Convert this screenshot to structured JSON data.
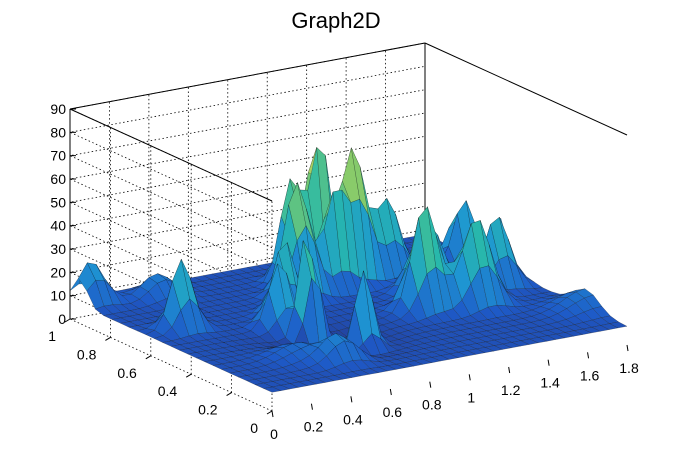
{
  "chart_data": {
    "type": "surface3d",
    "title": "Graph2D",
    "x_range": [
      0,
      1.8
    ],
    "y_range": [
      0,
      1
    ],
    "z_range": [
      0,
      90
    ],
    "x_ticks": [
      "0",
      "0.2",
      "0.4",
      "0.6",
      "0.8",
      "1",
      "1.2",
      "1.4",
      "1.6",
      "1.8"
    ],
    "y_ticks": [
      "0",
      "0.2",
      "0.4",
      "0.6",
      "0.8",
      "1"
    ],
    "z_ticks": [
      "0",
      "10",
      "20",
      "30",
      "40",
      "50",
      "60",
      "70",
      "80",
      "90"
    ],
    "grid": true,
    "colormap": "viridis",
    "peaks": [
      {
        "x": 0.06,
        "y": 0.95,
        "z": 18,
        "w": 0.035
      },
      {
        "x": 0.18,
        "y": 0.62,
        "z": 30,
        "w": 0.03
      },
      {
        "x": 0.35,
        "y": 0.9,
        "z": 10,
        "w": 0.04
      },
      {
        "x": 0.55,
        "y": 0.5,
        "z": 28,
        "w": 0.03
      },
      {
        "x": 0.6,
        "y": 0.4,
        "z": 60,
        "w": 0.022
      },
      {
        "x": 0.66,
        "y": 0.58,
        "z": 32,
        "w": 0.03
      },
      {
        "x": 0.72,
        "y": 0.25,
        "z": 35,
        "w": 0.025
      },
      {
        "x": 0.5,
        "y": 0.15,
        "z": 12,
        "w": 0.04
      },
      {
        "x": 0.85,
        "y": 0.7,
        "z": 50,
        "w": 0.035
      },
      {
        "x": 0.95,
        "y": 0.82,
        "z": 48,
        "w": 0.03
      },
      {
        "x": 1.05,
        "y": 0.72,
        "z": 45,
        "w": 0.03
      },
      {
        "x": 1.1,
        "y": 0.85,
        "z": 68,
        "w": 0.028
      },
      {
        "x": 1.18,
        "y": 0.74,
        "z": 58,
        "w": 0.03
      },
      {
        "x": 1.35,
        "y": 0.75,
        "z": 32,
        "w": 0.035
      },
      {
        "x": 1.2,
        "y": 0.42,
        "z": 45,
        "w": 0.035
      },
      {
        "x": 1.35,
        "y": 0.55,
        "z": 30,
        "w": 0.04
      },
      {
        "x": 1.42,
        "y": 0.38,
        "z": 38,
        "w": 0.04
      },
      {
        "x": 1.65,
        "y": 0.5,
        "z": 30,
        "w": 0.035
      },
      {
        "x": 1.7,
        "y": 0.72,
        "z": 30,
        "w": 0.03
      },
      {
        "x": 1.8,
        "y": 0.62,
        "z": 22,
        "w": 0.03
      },
      {
        "x": 1.8,
        "y": 0.2,
        "z": 8,
        "w": 0.06
      },
      {
        "x": 0.4,
        "y": 0.25,
        "z": 8,
        "w": 0.06
      }
    ],
    "base_level": 8
  }
}
